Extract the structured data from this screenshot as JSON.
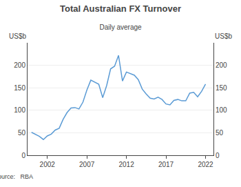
{
  "chart_data": {
    "type": "line",
    "title": "Total Australian FX Turnover",
    "subtitle": "Daily average",
    "ylabel": "US$b",
    "y2label": "US$b",
    "source": "Source:   RBA",
    "color": "#5B9BD5",
    "x": [
      2000.0,
      2000.5,
      2001.0,
      2001.5,
      2002.0,
      2002.5,
      2003.0,
      2003.5,
      2004.0,
      2004.5,
      2005.0,
      2005.5,
      2006.0,
      2006.5,
      2007.0,
      2007.5,
      2008.0,
      2008.5,
      2009.0,
      2009.5,
      2010.0,
      2010.5,
      2011.0,
      2011.5,
      2012.0,
      2012.5,
      2013.0,
      2013.5,
      2014.0,
      2014.5,
      2015.0,
      2015.5,
      2016.0,
      2016.5,
      2017.0,
      2017.5,
      2018.0,
      2018.5,
      2019.0,
      2019.5,
      2020.0,
      2020.5,
      2021.0,
      2021.5,
      2022.0
    ],
    "values": [
      51,
      47,
      42,
      35,
      43,
      47,
      56,
      60,
      80,
      95,
      105,
      106,
      103,
      118,
      145,
      167,
      163,
      158,
      128,
      155,
      192,
      198,
      222,
      165,
      185,
      182,
      178,
      168,
      147,
      136,
      127,
      125,
      129,
      124,
      114,
      112,
      122,
      124,
      121,
      121,
      138,
      140,
      130,
      142,
      158
    ],
    "xlim": [
      1999.5,
      2023.0
    ],
    "xticks": [
      2002,
      2007,
      2012,
      2017,
      2022
    ],
    "ylim": [
      0,
      250
    ],
    "yticks": [
      0,
      50,
      100,
      150,
      200
    ],
    "y2lim": [
      0,
      250
    ],
    "y2ticks": [
      0,
      50,
      100,
      150,
      200
    ],
    "grid": true
  }
}
